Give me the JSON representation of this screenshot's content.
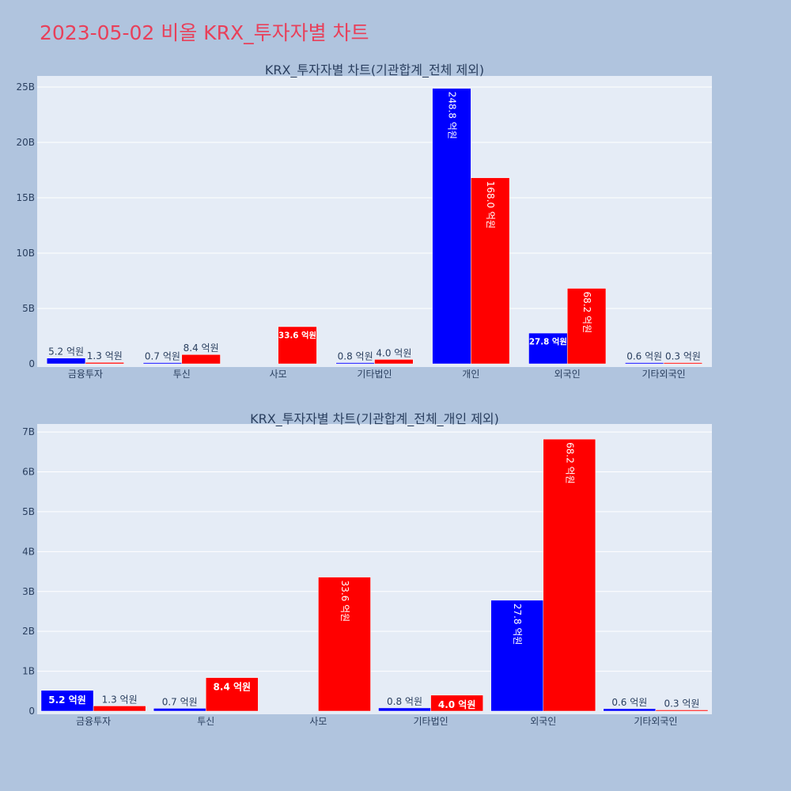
{
  "page": {
    "title": "2023-05-02 비올 KRX_투자자별 차트",
    "colors": {
      "background": "#b0c4de",
      "plot_background": "#e5ecf6",
      "title": "#e8405a",
      "series_a": "#0000ff",
      "series_b": "#ff0000"
    }
  },
  "chart_data": [
    {
      "type": "bar",
      "title": "KRX_투자자별 차트(기관합계_전체 제외)",
      "categories": [
        "금융투자",
        "투신",
        "사모",
        "기타법인",
        "개인",
        "외국인",
        "기타외국인"
      ],
      "series": [
        {
          "color": "#0000ff",
          "values": [
            520000000,
            70000000,
            0,
            80000000,
            24880000000,
            2780000000,
            60000000
          ],
          "labels": [
            "5.2 억원",
            "0.7 억원",
            "",
            "0.8 억원",
            "248.8 억원",
            "27.8 억원",
            "0.6 억원"
          ]
        },
        {
          "color": "#ff0000",
          "values": [
            130000000,
            840000000,
            3360000000,
            400000000,
            16800000000,
            6820000000,
            30000000
          ],
          "labels": [
            "1.3 억원",
            "8.4 억원",
            "33.6 억원",
            "4.0 억원",
            "168.0 억원",
            "68.2 억원",
            "0.3 억원"
          ]
        }
      ],
      "ylim": [
        0,
        26000000000
      ],
      "yticks": [
        0,
        5000000000,
        10000000000,
        15000000000,
        20000000000,
        25000000000
      ],
      "yticklabels": [
        "0",
        "5B",
        "10B",
        "15B",
        "20B",
        "25B"
      ],
      "grid": true,
      "legend": "none"
    },
    {
      "type": "bar",
      "title": "KRX_투자자별 차트(기관합계_전체_개인 제외)",
      "categories": [
        "금융투자",
        "투신",
        "사모",
        "기타법인",
        "외국인",
        "기타외국인"
      ],
      "series": [
        {
          "color": "#0000ff",
          "values": [
            520000000,
            70000000,
            0,
            80000000,
            2780000000,
            60000000
          ],
          "labels": [
            "5.2 억원",
            "0.7 억원",
            "",
            "0.8 억원",
            "27.8 억원",
            "0.6 억원"
          ]
        },
        {
          "color": "#ff0000",
          "values": [
            130000000,
            840000000,
            3360000000,
            400000000,
            6820000000,
            30000000
          ],
          "labels": [
            "1.3 억원",
            "8.4 억원",
            "33.6 억원",
            "4.0 억원",
            "68.2 억원",
            "0.3 억원"
          ]
        }
      ],
      "ylim": [
        0,
        7200000000
      ],
      "yticks": [
        0,
        1000000000,
        2000000000,
        3000000000,
        4000000000,
        5000000000,
        6000000000,
        7000000000
      ],
      "yticklabels": [
        "0",
        "1B",
        "2B",
        "3B",
        "4B",
        "5B",
        "6B",
        "7B"
      ],
      "grid": true,
      "legend": "none"
    }
  ]
}
